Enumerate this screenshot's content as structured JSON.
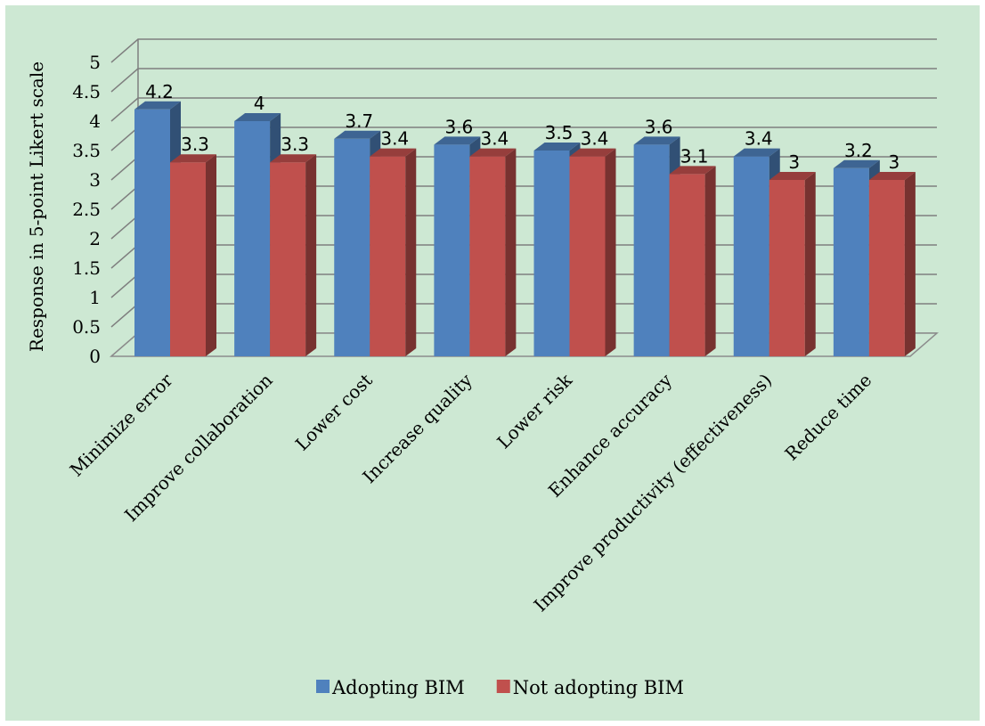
{
  "chart_data": {
    "type": "bar",
    "title": "",
    "xlabel": "",
    "ylabel": "Response in 5-point Likert scale",
    "ylim": [
      0,
      5
    ],
    "y_ticks": [
      0,
      0.5,
      1,
      1.5,
      2,
      2.5,
      3,
      3.5,
      4,
      4.5,
      5
    ],
    "y_tick_labels": [
      "0",
      "0.5",
      "1",
      "1.5",
      "2",
      "2.5",
      "3",
      "3.5",
      "4",
      "4.5",
      "5"
    ],
    "grid": true,
    "legend_position": "bottom",
    "categories": [
      "Minimize error",
      "Improve collaboration",
      "Lower cost",
      "Increase quality",
      "Lower risk",
      "Enhance accuracy",
      "Improve productivity (effectiveness)",
      "Reduce time"
    ],
    "series": [
      {
        "name": "Adopting BIM",
        "color": "#4f81bd",
        "values": [
          4.2,
          4,
          3.7,
          3.6,
          3.5,
          3.6,
          3.4,
          3.2
        ],
        "labels": [
          "4.2",
          "4",
          "3.7",
          "3.6",
          "3.5",
          "3.6",
          "3.4",
          "3.2"
        ]
      },
      {
        "name": "Not adopting BIM",
        "color": "#c0504d",
        "values": [
          3.3,
          3.3,
          3.4,
          3.4,
          3.4,
          3.1,
          3,
          3
        ],
        "labels": [
          "3.3",
          "3.3",
          "3.4",
          "3.4",
          "3.4",
          "3.1",
          "3",
          "3"
        ]
      }
    ],
    "background_color": "#cde8d3"
  }
}
